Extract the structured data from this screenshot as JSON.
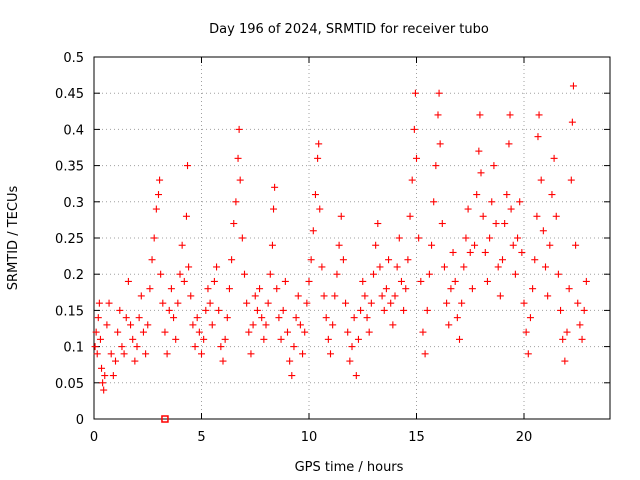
{
  "chart_data": {
    "type": "scatter",
    "title": "Day 196 of 2024, SRMTID for receiver tubo",
    "xlabel": "GPS time / hours",
    "ylabel": "SRMTID / TECUs",
    "xlim": [
      0,
      24
    ],
    "ylim": [
      0,
      0.5
    ],
    "x_ticks": [
      0,
      5,
      10,
      15,
      20
    ],
    "x_tick_labels": [
      "0",
      "5",
      "10",
      "15",
      "20"
    ],
    "y_ticks": [
      0,
      0.05,
      0.1,
      0.15,
      0.2,
      0.25,
      0.3,
      0.35,
      0.4,
      0.45,
      0.5
    ],
    "y_tick_labels": [
      "0",
      "0.05",
      "0.1",
      "0.15",
      "0.2",
      "0.25",
      "0.3",
      "0.35",
      "0.4",
      "0.45",
      "0.5"
    ],
    "grid": true,
    "marker": "+",
    "marker_color": "#ff0000",
    "series": [
      {
        "name": "SRMTID",
        "points": [
          [
            0.05,
            0.1
          ],
          [
            0.1,
            0.12
          ],
          [
            0.15,
            0.09
          ],
          [
            0.2,
            0.14
          ],
          [
            0.25,
            0.16
          ],
          [
            0.3,
            0.11
          ],
          [
            0.35,
            0.07
          ],
          [
            0.4,
            0.05
          ],
          [
            0.45,
            0.04
          ],
          [
            0.5,
            0.06
          ],
          [
            0.6,
            0.13
          ],
          [
            0.7,
            0.16
          ],
          [
            0.8,
            0.09
          ],
          [
            0.9,
            0.06
          ],
          [
            1.0,
            0.08
          ],
          [
            1.1,
            0.12
          ],
          [
            1.2,
            0.15
          ],
          [
            1.3,
            0.1
          ],
          [
            1.4,
            0.09
          ],
          [
            1.5,
            0.14
          ],
          [
            1.6,
            0.19
          ],
          [
            1.7,
            0.13
          ],
          [
            1.8,
            0.11
          ],
          [
            1.9,
            0.08
          ],
          [
            2.0,
            0.1
          ],
          [
            2.1,
            0.14
          ],
          [
            2.2,
            0.17
          ],
          [
            2.3,
            0.12
          ],
          [
            2.4,
            0.09
          ],
          [
            2.5,
            0.13
          ],
          [
            2.6,
            0.18
          ],
          [
            2.7,
            0.22
          ],
          [
            2.8,
            0.25
          ],
          [
            2.9,
            0.29
          ],
          [
            3.0,
            0.31
          ],
          [
            3.05,
            0.33
          ],
          [
            3.1,
            0.2
          ],
          [
            3.2,
            0.16
          ],
          [
            3.3,
            0.12
          ],
          [
            3.4,
            0.09
          ],
          [
            3.5,
            0.15
          ],
          [
            3.6,
            0.18
          ],
          [
            3.7,
            0.14
          ],
          [
            3.8,
            0.11
          ],
          [
            3.9,
            0.16
          ],
          [
            4.0,
            0.2
          ],
          [
            4.1,
            0.24
          ],
          [
            4.2,
            0.19
          ],
          [
            4.3,
            0.28
          ],
          [
            4.35,
            0.35
          ],
          [
            4.4,
            0.21
          ],
          [
            4.5,
            0.17
          ],
          [
            4.6,
            0.13
          ],
          [
            4.7,
            0.1
          ],
          [
            4.8,
            0.14
          ],
          [
            4.9,
            0.12
          ],
          [
            5.0,
            0.09
          ],
          [
            5.1,
            0.11
          ],
          [
            5.2,
            0.15
          ],
          [
            5.3,
            0.18
          ],
          [
            5.4,
            0.16
          ],
          [
            5.5,
            0.13
          ],
          [
            5.6,
            0.19
          ],
          [
            5.7,
            0.21
          ],
          [
            5.8,
            0.15
          ],
          [
            5.9,
            0.1
          ],
          [
            6.0,
            0.08
          ],
          [
            6.1,
            0.11
          ],
          [
            6.2,
            0.14
          ],
          [
            6.3,
            0.18
          ],
          [
            6.4,
            0.22
          ],
          [
            6.5,
            0.27
          ],
          [
            6.6,
            0.3
          ],
          [
            6.7,
            0.36
          ],
          [
            6.75,
            0.4
          ],
          [
            6.8,
            0.33
          ],
          [
            6.9,
            0.25
          ],
          [
            7.0,
            0.2
          ],
          [
            7.1,
            0.16
          ],
          [
            7.2,
            0.12
          ],
          [
            7.3,
            0.09
          ],
          [
            7.4,
            0.13
          ],
          [
            7.5,
            0.17
          ],
          [
            7.6,
            0.15
          ],
          [
            7.7,
            0.18
          ],
          [
            7.8,
            0.14
          ],
          [
            7.9,
            0.11
          ],
          [
            8.0,
            0.13
          ],
          [
            8.1,
            0.16
          ],
          [
            8.2,
            0.2
          ],
          [
            8.3,
            0.24
          ],
          [
            8.35,
            0.29
          ],
          [
            8.4,
            0.32
          ],
          [
            8.5,
            0.18
          ],
          [
            8.6,
            0.14
          ],
          [
            8.7,
            0.11
          ],
          [
            8.8,
            0.15
          ],
          [
            8.9,
            0.19
          ],
          [
            9.0,
            0.12
          ],
          [
            9.1,
            0.08
          ],
          [
            9.2,
            0.06
          ],
          [
            9.3,
            0.1
          ],
          [
            9.4,
            0.14
          ],
          [
            9.5,
            0.17
          ],
          [
            9.6,
            0.13
          ],
          [
            9.7,
            0.09
          ],
          [
            9.8,
            0.12
          ],
          [
            9.9,
            0.16
          ],
          [
            10.0,
            0.19
          ],
          [
            10.1,
            0.22
          ],
          [
            10.2,
            0.26
          ],
          [
            10.3,
            0.31
          ],
          [
            10.4,
            0.36
          ],
          [
            10.45,
            0.38
          ],
          [
            10.5,
            0.29
          ],
          [
            10.6,
            0.21
          ],
          [
            10.7,
            0.17
          ],
          [
            10.8,
            0.14
          ],
          [
            10.9,
            0.11
          ],
          [
            11.0,
            0.09
          ],
          [
            11.1,
            0.13
          ],
          [
            11.2,
            0.17
          ],
          [
            11.3,
            0.2
          ],
          [
            11.4,
            0.24
          ],
          [
            11.5,
            0.28
          ],
          [
            11.6,
            0.22
          ],
          [
            11.7,
            0.16
          ],
          [
            11.8,
            0.12
          ],
          [
            11.9,
            0.08
          ],
          [
            12.0,
            0.1
          ],
          [
            12.1,
            0.14
          ],
          [
            12.2,
            0.06
          ],
          [
            12.3,
            0.11
          ],
          [
            12.4,
            0.15
          ],
          [
            12.5,
            0.19
          ],
          [
            12.6,
            0.17
          ],
          [
            12.7,
            0.14
          ],
          [
            12.8,
            0.12
          ],
          [
            12.9,
            0.16
          ],
          [
            13.0,
            0.2
          ],
          [
            13.1,
            0.24
          ],
          [
            13.2,
            0.27
          ],
          [
            13.3,
            0.21
          ],
          [
            13.4,
            0.17
          ],
          [
            13.5,
            0.15
          ],
          [
            13.6,
            0.18
          ],
          [
            13.7,
            0.22
          ],
          [
            13.8,
            0.16
          ],
          [
            13.9,
            0.13
          ],
          [
            14.0,
            0.17
          ],
          [
            14.1,
            0.21
          ],
          [
            14.2,
            0.25
          ],
          [
            14.3,
            0.19
          ],
          [
            14.4,
            0.15
          ],
          [
            14.5,
            0.18
          ],
          [
            14.6,
            0.22
          ],
          [
            14.7,
            0.28
          ],
          [
            14.8,
            0.33
          ],
          [
            14.9,
            0.4
          ],
          [
            14.95,
            0.45
          ],
          [
            15.0,
            0.36
          ],
          [
            15.1,
            0.25
          ],
          [
            15.2,
            0.19
          ],
          [
            15.3,
            0.12
          ],
          [
            15.4,
            0.09
          ],
          [
            15.5,
            0.15
          ],
          [
            15.6,
            0.2
          ],
          [
            15.7,
            0.24
          ],
          [
            15.8,
            0.3
          ],
          [
            15.9,
            0.35
          ],
          [
            16.0,
            0.42
          ],
          [
            16.05,
            0.45
          ],
          [
            16.1,
            0.38
          ],
          [
            16.2,
            0.27
          ],
          [
            16.3,
            0.21
          ],
          [
            16.4,
            0.16
          ],
          [
            16.5,
            0.13
          ],
          [
            16.6,
            0.18
          ],
          [
            16.7,
            0.23
          ],
          [
            16.8,
            0.19
          ],
          [
            16.9,
            0.14
          ],
          [
            17.0,
            0.11
          ],
          [
            17.1,
            0.16
          ],
          [
            17.2,
            0.21
          ],
          [
            17.3,
            0.25
          ],
          [
            17.4,
            0.29
          ],
          [
            17.5,
            0.23
          ],
          [
            17.6,
            0.18
          ],
          [
            17.7,
            0.24
          ],
          [
            17.8,
            0.31
          ],
          [
            17.9,
            0.37
          ],
          [
            17.95,
            0.42
          ],
          [
            18.0,
            0.34
          ],
          [
            18.1,
            0.28
          ],
          [
            18.2,
            0.23
          ],
          [
            18.3,
            0.19
          ],
          [
            18.4,
            0.25
          ],
          [
            18.5,
            0.3
          ],
          [
            18.6,
            0.35
          ],
          [
            18.7,
            0.27
          ],
          [
            18.8,
            0.21
          ],
          [
            18.9,
            0.17
          ],
          [
            19.0,
            0.22
          ],
          [
            19.1,
            0.27
          ],
          [
            19.2,
            0.31
          ],
          [
            19.3,
            0.38
          ],
          [
            19.35,
            0.42
          ],
          [
            19.4,
            0.29
          ],
          [
            19.5,
            0.24
          ],
          [
            19.6,
            0.2
          ],
          [
            19.7,
            0.25
          ],
          [
            19.8,
            0.3
          ],
          [
            19.9,
            0.23
          ],
          [
            20.0,
            0.16
          ],
          [
            20.1,
            0.12
          ],
          [
            20.2,
            0.09
          ],
          [
            20.3,
            0.14
          ],
          [
            20.4,
            0.18
          ],
          [
            20.5,
            0.22
          ],
          [
            20.6,
            0.28
          ],
          [
            20.65,
            0.39
          ],
          [
            20.7,
            0.42
          ],
          [
            20.8,
            0.33
          ],
          [
            20.9,
            0.26
          ],
          [
            21.0,
            0.21
          ],
          [
            21.1,
            0.17
          ],
          [
            21.2,
            0.24
          ],
          [
            21.3,
            0.31
          ],
          [
            21.4,
            0.36
          ],
          [
            21.5,
            0.28
          ],
          [
            21.6,
            0.2
          ],
          [
            21.7,
            0.15
          ],
          [
            21.8,
            0.11
          ],
          [
            21.9,
            0.08
          ],
          [
            22.0,
            0.12
          ],
          [
            22.1,
            0.18
          ],
          [
            22.2,
            0.33
          ],
          [
            22.25,
            0.41
          ],
          [
            22.3,
            0.46
          ],
          [
            22.4,
            0.24
          ],
          [
            22.5,
            0.16
          ],
          [
            22.6,
            0.13
          ],
          [
            22.7,
            0.11
          ],
          [
            22.8,
            0.15
          ],
          [
            22.9,
            0.19
          ]
        ]
      }
    ],
    "special_marks": [
      {
        "type": "square",
        "x": 3.3,
        "y": 0.0,
        "color": "#ff0000"
      }
    ]
  }
}
